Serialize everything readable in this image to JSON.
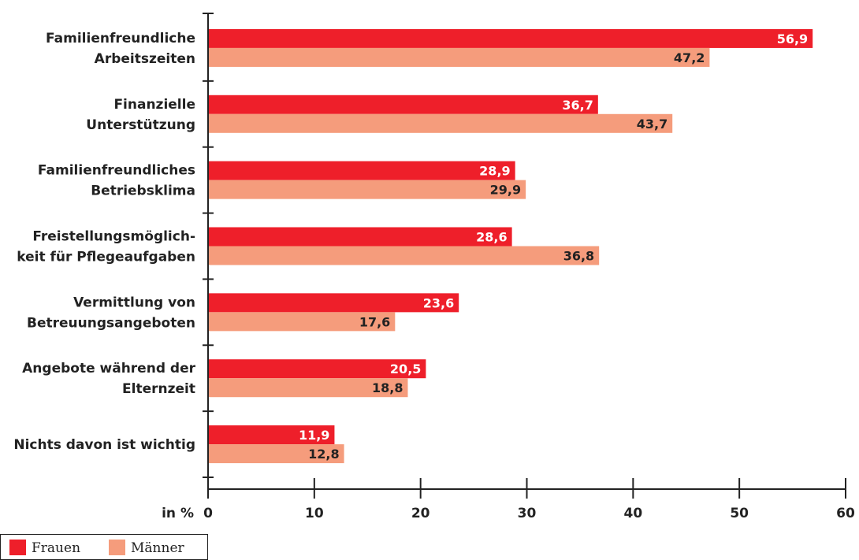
{
  "chart_data": {
    "type": "bar",
    "orientation": "horizontal",
    "categories": [
      [
        "Familienfreundliche",
        "Arbeitszeiten"
      ],
      [
        "Finanzielle",
        "Unterstützung"
      ],
      [
        "Familienfreundliches",
        "Betriebsklima"
      ],
      [
        "Freistellungsmöglich-",
        "keit für Pflegeaufgaben"
      ],
      [
        "Vermittlung von",
        "Betreuungsangeboten"
      ],
      [
        "Angebote während der",
        "Elternzeit"
      ],
      [
        "Nichts davon ist wichtig"
      ]
    ],
    "series": [
      {
        "name": "Frauen",
        "color": "#ee1f2a",
        "label_color": "#ffffff",
        "values": [
          56.9,
          36.7,
          28.9,
          28.6,
          23.6,
          20.5,
          11.9
        ],
        "labels": [
          "56,9",
          "36,7",
          "28,9",
          "28,6",
          "23,6",
          "20,5",
          "11,9"
        ]
      },
      {
        "name": "Männer",
        "color": "#f59c7c",
        "label_color": "#222222",
        "values": [
          47.2,
          43.7,
          29.9,
          36.8,
          17.6,
          18.8,
          12.8
        ],
        "labels": [
          "47,2",
          "43,7",
          "29,9",
          "36,8",
          "17,6",
          "18,8",
          "12,8"
        ]
      }
    ],
    "xlim": [
      0,
      60
    ],
    "xticks": [
      0,
      10,
      20,
      30,
      40,
      50,
      60
    ],
    "xlabel": "in %",
    "grid": false,
    "legend_position": "bottom-left"
  }
}
